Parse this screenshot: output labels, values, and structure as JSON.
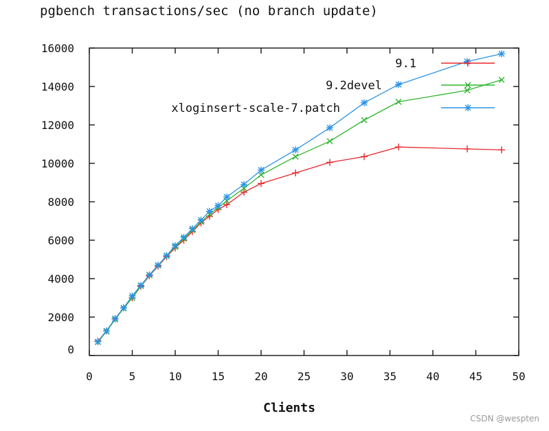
{
  "chart_data": {
    "type": "line",
    "title": "pgbench transactions/sec (no branch update)",
    "xlabel": "Clients",
    "ylabel": "",
    "xlim": [
      0,
      50
    ],
    "ylim": [
      0,
      16000
    ],
    "xticks": [
      0,
      5,
      10,
      15,
      20,
      25,
      30,
      35,
      40,
      45,
      50
    ],
    "yticks": [
      0,
      2000,
      4000,
      6000,
      8000,
      10000,
      12000,
      14000,
      16000
    ],
    "grid": false,
    "legend": "top-right",
    "series": [
      {
        "name": "9.1",
        "color": "#e8262b",
        "marker": "plus",
        "x": [
          1,
          2,
          3,
          4,
          5,
          6,
          7,
          8,
          9,
          10,
          11,
          12,
          13,
          14,
          15,
          16,
          18,
          20,
          24,
          28,
          32,
          36,
          44,
          48
        ],
        "y": [
          750,
          1280,
          1900,
          2480,
          3000,
          3600,
          4150,
          4650,
          5150,
          5600,
          6000,
          6450,
          6900,
          7250,
          7600,
          7850,
          8500,
          8950,
          9500,
          10050,
          10350,
          10850,
          10750,
          10700
        ]
      },
      {
        "name": "9.2devel",
        "color": "#2db52d",
        "marker": "x",
        "x": [
          1,
          2,
          3,
          4,
          5,
          6,
          7,
          8,
          9,
          10,
          11,
          12,
          13,
          14,
          15,
          16,
          18,
          20,
          24,
          28,
          32,
          36,
          44,
          48
        ],
        "y": [
          700,
          1250,
          1880,
          2450,
          3000,
          3620,
          4180,
          4680,
          5180,
          5650,
          6080,
          6520,
          6950,
          7350,
          7700,
          8050,
          8700,
          9400,
          10350,
          11150,
          12250,
          13200,
          13800,
          14350
        ]
      },
      {
        "name": "xloginsert-scale-7.patch",
        "color": "#2b93e6",
        "marker": "star",
        "x": [
          1,
          2,
          3,
          4,
          5,
          6,
          7,
          8,
          9,
          10,
          11,
          12,
          13,
          14,
          15,
          16,
          18,
          20,
          24,
          28,
          32,
          36,
          44,
          48
        ],
        "y": [
          720,
          1280,
          1920,
          2480,
          3100,
          3650,
          4200,
          4700,
          5200,
          5720,
          6150,
          6600,
          7050,
          7500,
          7800,
          8250,
          8900,
          9650,
          10700,
          11850,
          13150,
          14100,
          15300,
          15700
        ]
      }
    ]
  },
  "watermark": "CSDN @wespten"
}
